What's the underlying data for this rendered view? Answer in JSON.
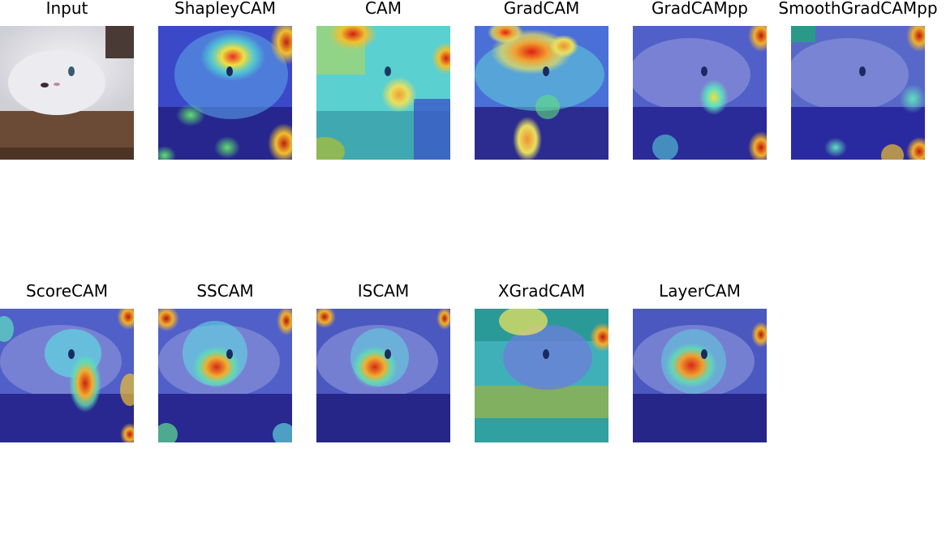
{
  "panels": [
    {
      "title": "Input",
      "kind": "input"
    },
    {
      "title": "ShapleyCAM",
      "kind": "heatmap"
    },
    {
      "title": "CAM",
      "kind": "heatmap"
    },
    {
      "title": "GradCAM",
      "kind": "heatmap"
    },
    {
      "title": "GradCAMpp",
      "kind": "heatmap"
    },
    {
      "title": "SmoothGradCAMpp",
      "kind": "heatmap"
    },
    {
      "title": "ScoreCAM",
      "kind": "heatmap"
    },
    {
      "title": "SSCAM",
      "kind": "heatmap"
    },
    {
      "title": "ISCAM",
      "kind": "heatmap"
    },
    {
      "title": "XGradCAM",
      "kind": "heatmap"
    },
    {
      "title": "LayerCAM",
      "kind": "heatmap"
    }
  ],
  "colormap": "jet",
  "colors": {
    "low": "#2a2a9a",
    "mid": "#5ae0d8",
    "high": "#e83020",
    "fur": "#e9e9ee",
    "table": "#6b4a36"
  }
}
